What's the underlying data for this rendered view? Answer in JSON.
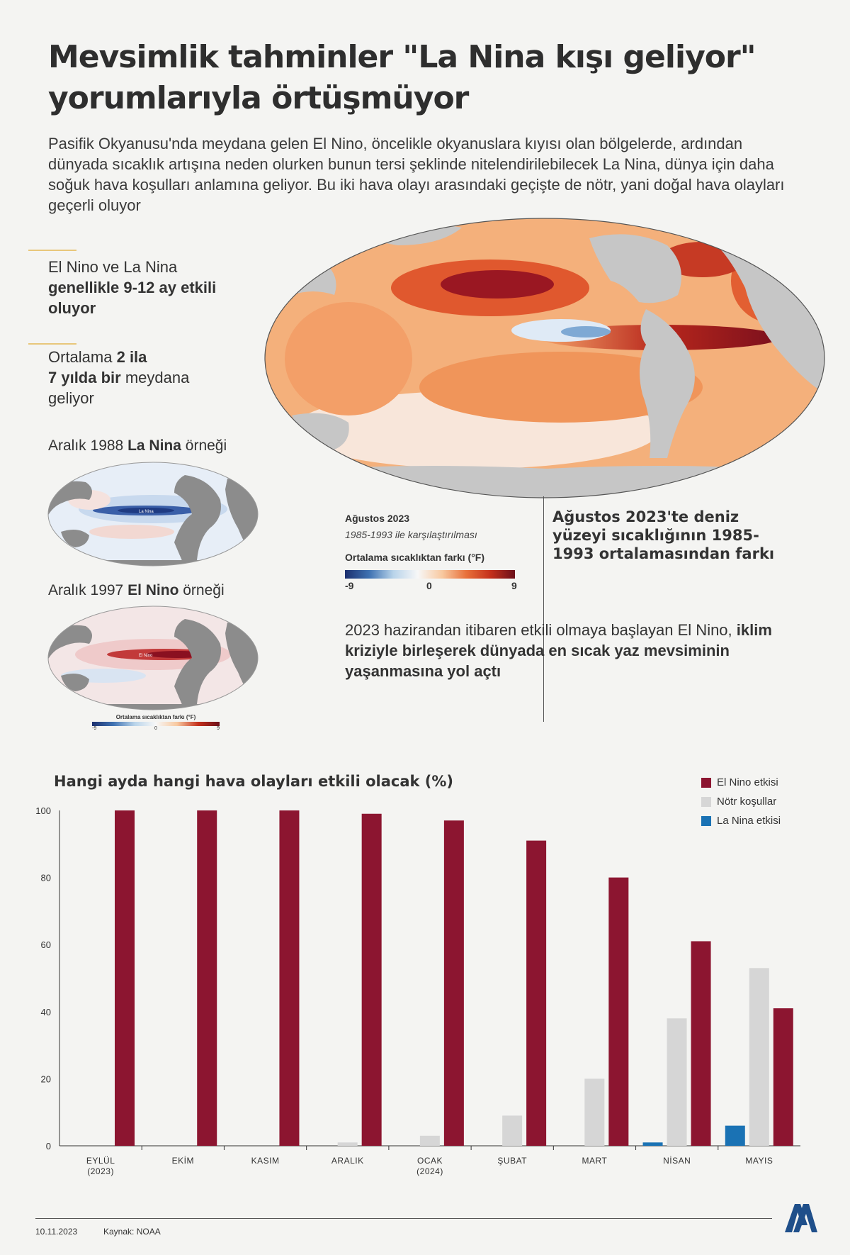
{
  "header": {
    "title_line1": "Mevsimlik tahminler \"La Nina kışı geliyor\"",
    "title_line2": "yorumlarıyla örtüşmüyor",
    "intro": "Pasifik Okyanusu'nda meydana gelen El Nino, öncelikle okyanuslara kıyısı olan bölgelerde, ardından dünyada sıcaklık artışına neden olurken bunun tersi şeklinde nitelendirilebilecek La Nina, dünya için daha soğuk hava koşulları anlamına geliyor. Bu iki hava olayı arasındaki geçişte de nötr, yani doğal hava olayları geçerli oluyor"
  },
  "facts": {
    "f1_plain": "El Nino ve La Nina",
    "f1_bold": "genellikle 9-12 ay etkili oluyor",
    "f2_plain1": "Ortalama ",
    "f2_bold1": "2 ila",
    "f2_bold2": "7 yılda bir",
    "f2_plain2": " meydana geliyor"
  },
  "examples": {
    "lanina_pre": "Aralık 1988 ",
    "lanina_bold": "La Nina",
    "lanina_post": " örneği",
    "lanina_map_label": "La Nina",
    "elnino_pre": "Aralık 1997 ",
    "elnino_bold": "El Nino",
    "elnino_post": " örneği",
    "elnino_map_label": "El Nino",
    "small_scale_title": "Ortalama sıcaklıktan farkı (°F)",
    "small_scale_min": "-9",
    "small_scale_mid": "0",
    "small_scale_max": "9"
  },
  "map": {
    "title": "Ağustos 2023",
    "subtitle": "1985-1993 ile karşılaştırılması",
    "scale_title": "Ortalama sıcaklıktan farkı (°F)",
    "scale_min": "-9",
    "scale_mid": "0",
    "scale_max": "9",
    "description_head": "Ağustos 2023'te deniz yüzeyi sıcaklığının 1985-1993 ortalamasından farkı",
    "body_plain": "2023 hazirandan itibaren etkili olmaya başlayan El Nino, ",
    "body_bold": "iklim kriziyle birleşerek dünyada en sıcak yaz mevsiminin yaşanmasına yol açtı"
  },
  "colors": {
    "el_nino": "#8c1530",
    "notr": "#d6d6d6",
    "la_nina": "#1a72b4"
  },
  "chart_data": {
    "type": "bar",
    "title": "Hangi ayda hangi hava olayları etkili olacak (%)",
    "categories": [
      "EYLÜL\n(2023)",
      "EKİM",
      "KASIM",
      "ARALIK",
      "OCAK\n(2024)",
      "ŞUBAT",
      "MART",
      "NİSAN",
      "MAYIS"
    ],
    "series": [
      {
        "name": "La Nina etkisi",
        "values": [
          0,
          0,
          0,
          0,
          0,
          0,
          0,
          1,
          6
        ]
      },
      {
        "name": "Nötr koşullar",
        "values": [
          0,
          0,
          0,
          1,
          3,
          9,
          20,
          38,
          53
        ]
      },
      {
        "name": "El Nino etkisi",
        "values": [
          100,
          100,
          100,
          99,
          97,
          91,
          80,
          61,
          41
        ]
      }
    ],
    "ylim": [
      0,
      100
    ],
    "yticks": [
      0,
      20,
      40,
      60,
      80,
      100
    ],
    "legend_position": "top-right",
    "grid": false
  },
  "footer": {
    "date": "10.11.2023",
    "source": "Kaynak: NOAA"
  }
}
